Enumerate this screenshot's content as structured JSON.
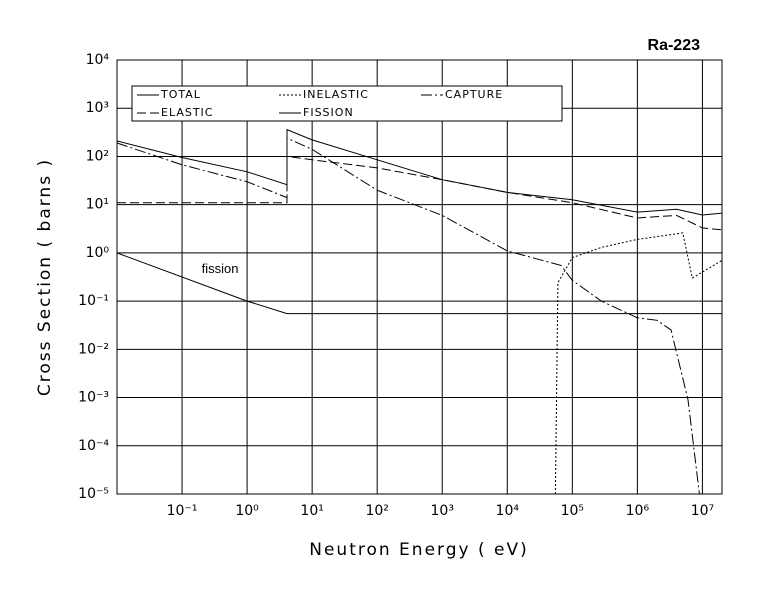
{
  "chart_data": {
    "type": "line",
    "title": "Ra-223",
    "x_label": "Neutron Energy ( eV)",
    "y_label": "Cross Section ( barns )",
    "x_scale": "log",
    "y_scale": "log",
    "grid": true,
    "legend_position": "upper left",
    "xlim": [
      0.01,
      20000000
    ],
    "ylim": [
      1e-05,
      10000
    ],
    "xticks": [
      {
        "value": 0.1,
        "label": "10⁻¹"
      },
      {
        "value": 1,
        "label": "10⁰"
      },
      {
        "value": 10,
        "label": "10¹"
      },
      {
        "value": 100,
        "label": "10²"
      },
      {
        "value": 1000,
        "label": "10³"
      },
      {
        "value": 10000,
        "label": "10⁴"
      },
      {
        "value": 100000,
        "label": "10⁵"
      },
      {
        "value": 1000000,
        "label": "10⁶"
      },
      {
        "value": 10000000,
        "label": "10⁷"
      }
    ],
    "yticks": [
      {
        "value": 1e-05,
        "label": "10⁻⁵"
      },
      {
        "value": 0.0001,
        "label": "10⁻⁴"
      },
      {
        "value": 0.001,
        "label": "10⁻³"
      },
      {
        "value": 0.01,
        "label": "10⁻²"
      },
      {
        "value": 0.1,
        "label": "10⁻¹"
      },
      {
        "value": 1,
        "label": "10⁰"
      },
      {
        "value": 10,
        "label": "10¹"
      },
      {
        "value": 100,
        "label": "10²"
      },
      {
        "value": 1000,
        "label": "10³"
      },
      {
        "value": 10000,
        "label": "10⁴"
      }
    ],
    "annotations": [
      {
        "text": "fission",
        "x": 0.2,
        "y": 0.45
      }
    ],
    "series": [
      {
        "name": "TOTAL",
        "color": "#000000",
        "line_style": "solid",
        "x": [
          0.01,
          0.1,
          1,
          4.1,
          4.1,
          10,
          100,
          1000,
          10000,
          100000,
          1000000,
          4000000,
          10000000,
          20000000
        ],
        "values": [
          210,
          95,
          48,
          26,
          360,
          220,
          85,
          33,
          18,
          12.6,
          7,
          8,
          6.1,
          6.7
        ]
      },
      {
        "name": "INELASTIC",
        "color": "#000000",
        "line_style": "dotted",
        "x": [
          55000,
          60000,
          100000,
          280000,
          1000000,
          3300000,
          5000000,
          7000000,
          20000000
        ],
        "values": [
          1e-05,
          0.24,
          0.8,
          1.3,
          1.9,
          2.4,
          2.6,
          0.3,
          0.7
        ]
      },
      {
        "name": "CAPTURE",
        "color": "#000000",
        "line_style": "dashdot",
        "x": [
          0.01,
          0.1,
          1,
          4.1,
          4.1,
          10,
          100,
          1000,
          10000,
          67000,
          100000,
          280000,
          1000000,
          2000000,
          3300000,
          6000000,
          9000000
        ],
        "values": [
          190,
          67,
          30,
          14,
          240,
          140,
          20,
          6,
          1.1,
          0.55,
          0.27,
          0.1,
          0.045,
          0.04,
          0.025,
          0.0009,
          1e-05
        ]
      },
      {
        "name": "ELASTIC",
        "color": "#000000",
        "line_style": "dashed",
        "x": [
          0.01,
          4.1,
          4.1,
          10,
          100,
          1000,
          10000,
          100000,
          1000000,
          4000000,
          10000000,
          20000000
        ],
        "values": [
          11,
          11,
          100,
          85,
          58,
          33,
          18,
          11,
          5.3,
          6,
          3.3,
          3
        ]
      },
      {
        "name": "FISSION",
        "color": "#000000",
        "line_style": "solid",
        "x": [
          0.01,
          1,
          4.1,
          20000000
        ],
        "values": [
          1,
          0.1,
          0.055,
          0.055
        ]
      }
    ]
  }
}
